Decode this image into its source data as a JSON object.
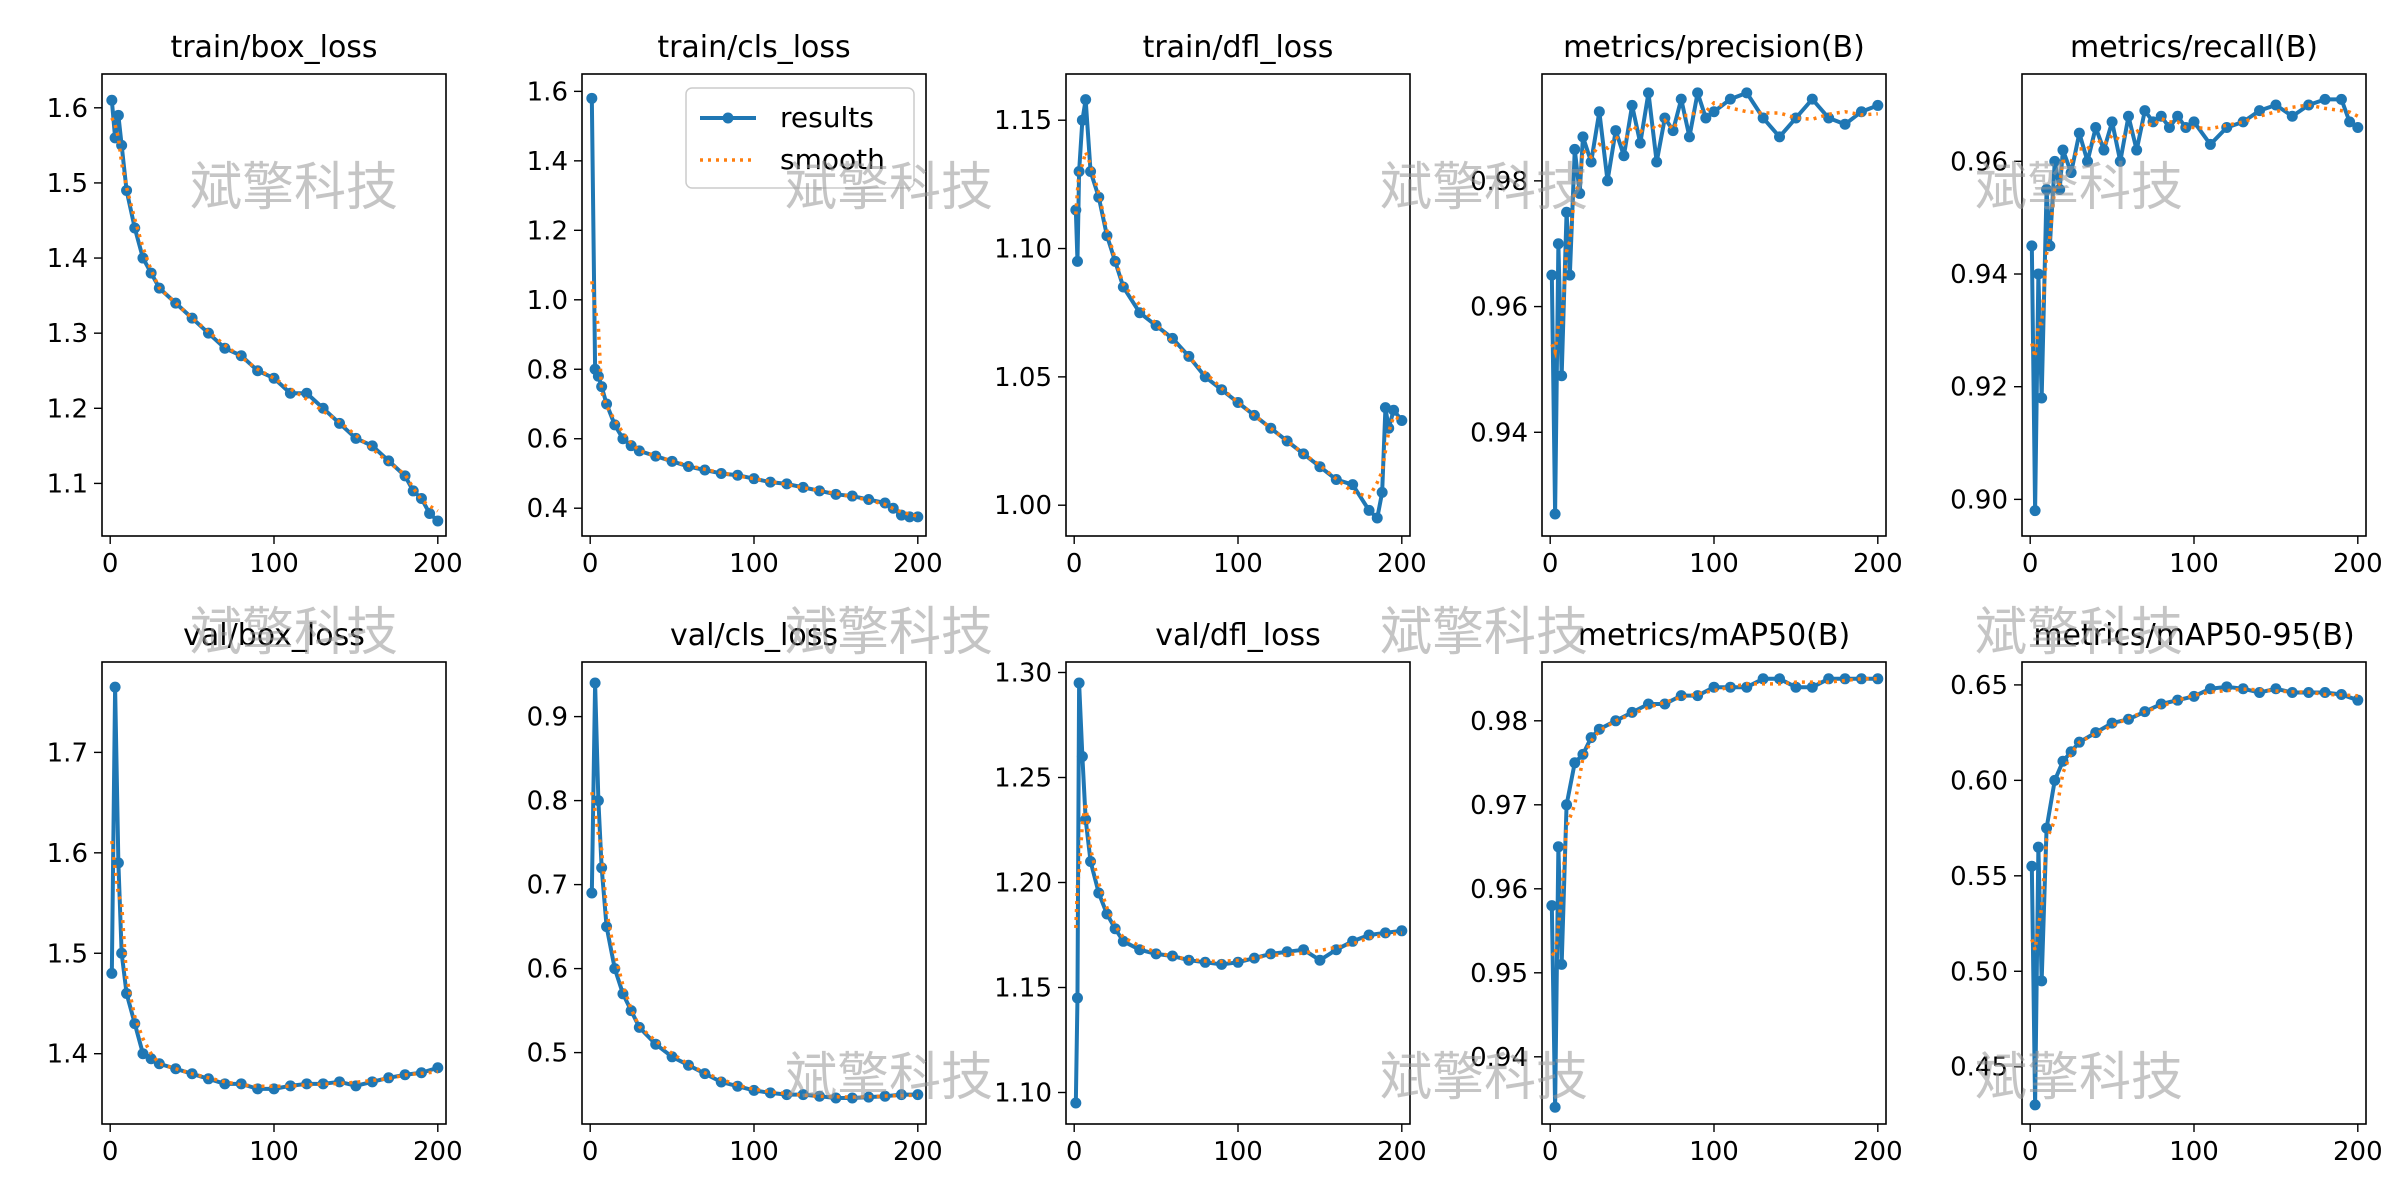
{
  "watermark": "斌擎科技",
  "legend": {
    "results": "results",
    "smooth": "smooth"
  },
  "colors": {
    "results": "#1f77b4",
    "smooth": "#ff7f0e"
  },
  "chart_data": [
    {
      "type": "line",
      "title": "train/box_loss",
      "xlim": [
        -5,
        205
      ],
      "ylim": [
        1.03,
        1.645
      ],
      "xticks": [
        0,
        100,
        200
      ],
      "yticks": [
        1.1,
        1.2,
        1.3,
        1.4,
        1.5,
        1.6
      ],
      "series": [
        {
          "name": "results",
          "x": [
            1,
            3,
            5,
            7,
            10,
            15,
            20,
            25,
            30,
            40,
            50,
            60,
            70,
            80,
            90,
            100,
            110,
            120,
            130,
            140,
            150,
            160,
            170,
            180,
            185,
            190,
            195,
            200
          ],
          "y": [
            1.61,
            1.56,
            1.59,
            1.55,
            1.49,
            1.44,
            1.4,
            1.38,
            1.36,
            1.34,
            1.32,
            1.3,
            1.28,
            1.27,
            1.25,
            1.24,
            1.22,
            1.22,
            1.2,
            1.18,
            1.16,
            1.15,
            1.13,
            1.11,
            1.09,
            1.08,
            1.06,
            1.05
          ]
        }
      ]
    },
    {
      "type": "line",
      "title": "train/cls_loss",
      "xlim": [
        -5,
        205
      ],
      "ylim": [
        0.32,
        1.65
      ],
      "xticks": [
        0,
        100,
        200
      ],
      "yticks": [
        0.4,
        0.6,
        0.8,
        1.0,
        1.2,
        1.4,
        1.6
      ],
      "legend_position": "top-right",
      "series": [
        {
          "name": "results",
          "x": [
            1,
            3,
            5,
            7,
            10,
            15,
            20,
            25,
            30,
            40,
            50,
            60,
            70,
            80,
            90,
            100,
            110,
            120,
            130,
            140,
            150,
            160,
            170,
            180,
            185,
            190,
            195,
            200
          ],
          "y": [
            1.58,
            0.8,
            0.78,
            0.75,
            0.7,
            0.64,
            0.6,
            0.58,
            0.565,
            0.55,
            0.535,
            0.52,
            0.51,
            0.5,
            0.495,
            0.485,
            0.475,
            0.47,
            0.46,
            0.45,
            0.44,
            0.435,
            0.425,
            0.415,
            0.4,
            0.38,
            0.375,
            0.375
          ]
        }
      ]
    },
    {
      "type": "line",
      "title": "train/dfl_loss",
      "xlim": [
        -5,
        205
      ],
      "ylim": [
        0.988,
        1.168
      ],
      "xticks": [
        0,
        100,
        200
      ],
      "yticks": [
        1.0,
        1.05,
        1.1,
        1.15
      ],
      "series": [
        {
          "name": "results",
          "x": [
            1,
            2,
            3,
            5,
            7,
            10,
            15,
            20,
            25,
            30,
            40,
            50,
            60,
            70,
            80,
            90,
            100,
            110,
            120,
            130,
            140,
            150,
            160,
            170,
            180,
            185,
            188,
            190,
            192,
            195,
            200
          ],
          "y": [
            1.115,
            1.095,
            1.13,
            1.15,
            1.158,
            1.13,
            1.12,
            1.105,
            1.095,
            1.085,
            1.075,
            1.07,
            1.065,
            1.058,
            1.05,
            1.045,
            1.04,
            1.035,
            1.03,
            1.025,
            1.02,
            1.015,
            1.01,
            1.008,
            0.998,
            0.995,
            1.005,
            1.038,
            1.03,
            1.037,
            1.033
          ]
        }
      ]
    },
    {
      "type": "line",
      "title": "metrics/precision(B)",
      "xlim": [
        -5,
        205
      ],
      "ylim": [
        0.9235,
        0.997
      ],
      "xticks": [
        0,
        100,
        200
      ],
      "yticks": [
        0.94,
        0.96,
        0.98
      ],
      "series": [
        {
          "name": "results",
          "x": [
            1,
            3,
            5,
            7,
            10,
            12,
            15,
            18,
            20,
            25,
            30,
            35,
            40,
            45,
            50,
            55,
            60,
            65,
            70,
            75,
            80,
            85,
            90,
            95,
            100,
            110,
            120,
            130,
            140,
            150,
            160,
            170,
            180,
            190,
            200
          ],
          "y": [
            0.965,
            0.927,
            0.97,
            0.949,
            0.975,
            0.965,
            0.985,
            0.978,
            0.987,
            0.983,
            0.991,
            0.98,
            0.988,
            0.984,
            0.992,
            0.986,
            0.994,
            0.983,
            0.99,
            0.988,
            0.993,
            0.987,
            0.994,
            0.99,
            0.991,
            0.993,
            0.994,
            0.99,
            0.987,
            0.99,
            0.993,
            0.99,
            0.989,
            0.991,
            0.992
          ]
        }
      ]
    },
    {
      "type": "line",
      "title": "metrics/recall(B)",
      "xlim": [
        -5,
        205
      ],
      "ylim": [
        0.8935,
        0.9755
      ],
      "xticks": [
        0,
        100,
        200
      ],
      "yticks": [
        0.9,
        0.92,
        0.94,
        0.96
      ],
      "series": [
        {
          "name": "results",
          "x": [
            1,
            3,
            5,
            7,
            10,
            12,
            15,
            18,
            20,
            25,
            30,
            35,
            40,
            45,
            50,
            55,
            60,
            65,
            70,
            75,
            80,
            85,
            90,
            95,
            100,
            110,
            120,
            130,
            140,
            150,
            160,
            170,
            180,
            190,
            195,
            200
          ],
          "y": [
            0.945,
            0.898,
            0.94,
            0.918,
            0.955,
            0.945,
            0.96,
            0.955,
            0.962,
            0.958,
            0.965,
            0.96,
            0.966,
            0.962,
            0.967,
            0.96,
            0.968,
            0.962,
            0.969,
            0.967,
            0.968,
            0.966,
            0.968,
            0.966,
            0.967,
            0.963,
            0.966,
            0.967,
            0.969,
            0.97,
            0.968,
            0.97,
            0.971,
            0.971,
            0.967,
            0.966
          ]
        }
      ]
    },
    {
      "type": "line",
      "title": "val/box_loss",
      "xlim": [
        -5,
        205
      ],
      "ylim": [
        1.33,
        1.79
      ],
      "xticks": [
        0,
        100,
        200
      ],
      "yticks": [
        1.4,
        1.5,
        1.6,
        1.7
      ],
      "series": [
        {
          "name": "results",
          "x": [
            1,
            3,
            5,
            7,
            10,
            15,
            20,
            25,
            30,
            40,
            50,
            60,
            70,
            80,
            90,
            100,
            110,
            120,
            130,
            140,
            150,
            160,
            170,
            180,
            190,
            200
          ],
          "y": [
            1.48,
            1.765,
            1.59,
            1.5,
            1.46,
            1.43,
            1.4,
            1.395,
            1.39,
            1.385,
            1.38,
            1.375,
            1.37,
            1.37,
            1.365,
            1.365,
            1.368,
            1.37,
            1.37,
            1.372,
            1.368,
            1.372,
            1.376,
            1.379,
            1.381,
            1.386
          ]
        }
      ]
    },
    {
      "type": "line",
      "title": "val/cls_loss",
      "xlim": [
        -5,
        205
      ],
      "ylim": [
        0.415,
        0.965
      ],
      "xticks": [
        0,
        100,
        200
      ],
      "yticks": [
        0.5,
        0.6,
        0.7,
        0.8,
        0.9
      ],
      "series": [
        {
          "name": "results",
          "x": [
            1,
            3,
            5,
            7,
            10,
            15,
            20,
            25,
            30,
            40,
            50,
            60,
            70,
            80,
            90,
            100,
            110,
            120,
            130,
            140,
            150,
            160,
            170,
            180,
            190,
            200
          ],
          "y": [
            0.69,
            0.94,
            0.8,
            0.72,
            0.65,
            0.6,
            0.57,
            0.55,
            0.53,
            0.51,
            0.495,
            0.485,
            0.475,
            0.465,
            0.46,
            0.455,
            0.452,
            0.45,
            0.45,
            0.448,
            0.446,
            0.446,
            0.447,
            0.448,
            0.45,
            0.45
          ]
        }
      ]
    },
    {
      "type": "line",
      "title": "val/dfl_loss",
      "xlim": [
        -5,
        205
      ],
      "ylim": [
        1.085,
        1.305
      ],
      "xticks": [
        0,
        100,
        200
      ],
      "yticks": [
        1.1,
        1.15,
        1.2,
        1.25,
        1.3
      ],
      "series": [
        {
          "name": "results",
          "x": [
            1,
            2,
            3,
            5,
            7,
            10,
            15,
            20,
            25,
            30,
            40,
            50,
            60,
            70,
            80,
            90,
            100,
            110,
            120,
            130,
            140,
            150,
            160,
            170,
            180,
            190,
            200
          ],
          "y": [
            1.095,
            1.145,
            1.295,
            1.26,
            1.23,
            1.21,
            1.195,
            1.185,
            1.178,
            1.172,
            1.168,
            1.166,
            1.165,
            1.163,
            1.162,
            1.161,
            1.162,
            1.164,
            1.166,
            1.167,
            1.168,
            1.163,
            1.168,
            1.172,
            1.175,
            1.176,
            1.177
          ]
        }
      ]
    },
    {
      "type": "line",
      "title": "metrics/mAP50(B)",
      "xlim": [
        -5,
        205
      ],
      "ylim": [
        0.932,
        0.987
      ],
      "xticks": [
        0,
        100,
        200
      ],
      "yticks": [
        0.94,
        0.95,
        0.96,
        0.97,
        0.98
      ],
      "series": [
        {
          "name": "results",
          "x": [
            1,
            3,
            5,
            7,
            10,
            15,
            20,
            25,
            30,
            40,
            50,
            60,
            70,
            80,
            90,
            100,
            110,
            120,
            130,
            140,
            150,
            160,
            170,
            180,
            190,
            200
          ],
          "y": [
            0.958,
            0.934,
            0.965,
            0.951,
            0.97,
            0.975,
            0.976,
            0.978,
            0.979,
            0.98,
            0.981,
            0.982,
            0.982,
            0.983,
            0.983,
            0.984,
            0.984,
            0.984,
            0.985,
            0.985,
            0.984,
            0.984,
            0.985,
            0.985,
            0.985,
            0.985
          ]
        }
      ]
    },
    {
      "type": "line",
      "title": "metrics/mAP50-95(B)",
      "xlim": [
        -5,
        205
      ],
      "ylim": [
        0.42,
        0.662
      ],
      "xticks": [
        0,
        100,
        200
      ],
      "yticks": [
        0.45,
        0.5,
        0.55,
        0.6,
        0.65
      ],
      "series": [
        {
          "name": "results",
          "x": [
            1,
            3,
            5,
            7,
            10,
            15,
            20,
            25,
            30,
            40,
            50,
            60,
            70,
            80,
            90,
            100,
            110,
            120,
            130,
            140,
            150,
            160,
            170,
            180,
            190,
            200
          ],
          "y": [
            0.555,
            0.43,
            0.565,
            0.495,
            0.575,
            0.6,
            0.61,
            0.615,
            0.62,
            0.625,
            0.63,
            0.632,
            0.636,
            0.64,
            0.642,
            0.644,
            0.648,
            0.649,
            0.648,
            0.646,
            0.648,
            0.646,
            0.646,
            0.646,
            0.645,
            0.642
          ]
        }
      ]
    }
  ]
}
